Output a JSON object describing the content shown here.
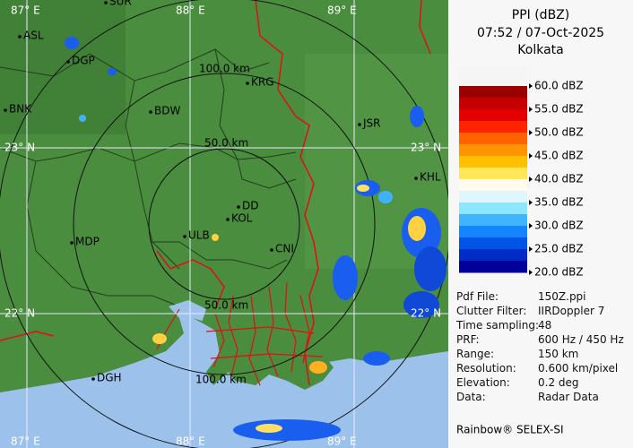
{
  "header": {
    "title": "PPI (dBZ)",
    "time": "07:52 / 07-Oct-2025",
    "station": "Kolkata"
  },
  "legend": {
    "labels": [
      "60.0 dBZ",
      "55.0 dBZ",
      "50.0 dBZ",
      "45.0 dBZ",
      "40.0 dBZ",
      "35.0 dBZ",
      "30.0 dBZ",
      "25.0 dBZ",
      "20.0 dBZ"
    ],
    "colors": [
      "#9a0000",
      "#c40000",
      "#e20000",
      "#ff2400",
      "#ff6200",
      "#ff9400",
      "#ffc000",
      "#ffe65a",
      "#fffbee",
      "#dff6ff",
      "#8ee6ff",
      "#40b4ff",
      "#1484ff",
      "#0054e6",
      "#002cc4",
      "#00009a"
    ]
  },
  "info": [
    [
      "Pdf File:",
      "150Z.ppi"
    ],
    [
      "Clutter Filter:",
      "IIRDoppler 7"
    ],
    [
      "Time sampling:",
      "48"
    ],
    [
      "PRF:",
      "600 Hz / 450 Hz"
    ],
    [
      "Range:",
      "150 km"
    ],
    [
      "Resolution:",
      "0.600 km/pixel"
    ],
    [
      "Elevation:",
      "0.2 deg"
    ],
    [
      "Data:",
      "Radar Data"
    ]
  ],
  "footer": "Rainbow® SELEX-SI",
  "map": {
    "cities": [
      "SUR",
      "ASL",
      "DGP",
      "BNK",
      "BDW",
      "KRG",
      "JSR",
      "KHL",
      "DD",
      "KOL",
      "ULB",
      "MDP",
      "CNI",
      "DGH"
    ],
    "grid_labels": [
      "87° E",
      "88° E",
      "89° E",
      "23° N",
      "23° N",
      "22° N",
      "22° N",
      "87° E",
      "88° E",
      "89° E"
    ],
    "ring_labels": [
      "100.0 km",
      "50.0 km",
      "50.0 km",
      "100.0 km"
    ]
  }
}
